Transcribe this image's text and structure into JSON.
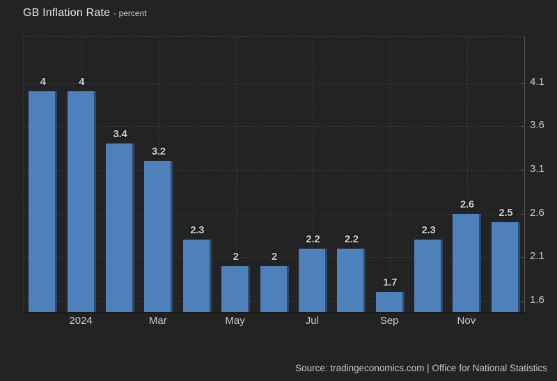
{
  "title": {
    "main": "GB Inflation Rate",
    "unit": "- percent"
  },
  "source": "Source: tradingeconomics.com | Office for National Statistics",
  "colors": {
    "background": "#232323",
    "bar": "#4e81bc",
    "bar_edge": "#2b4a6f",
    "grid": "#3d3d3d",
    "axis_line": "#57585a",
    "tick_text": "#c9c9c9",
    "value_label_text": "#cbcbcb",
    "title_text": "#e8e8e8",
    "source_text": "#c6c6c6"
  },
  "chart_data": {
    "type": "bar",
    "title": "GB Inflation Rate",
    "unit_label": "percent",
    "values": [
      4,
      4,
      3.4,
      3.2,
      2.3,
      2,
      2,
      2.2,
      2.2,
      1.7,
      2.3,
      2.6,
      2.5
    ],
    "bar_labels": [
      "4",
      "4",
      "3.4",
      "3.2",
      "2.3",
      "2",
      "2",
      "2.2",
      "2.2",
      "1.7",
      "2.3",
      "2.6",
      "2.5"
    ],
    "x_ticks": [
      {
        "index": 1,
        "label": "2024"
      },
      {
        "index": 3,
        "label": "Mar"
      },
      {
        "index": 5,
        "label": "May"
      },
      {
        "index": 7,
        "label": "Jul"
      },
      {
        "index": 9,
        "label": "Sep"
      },
      {
        "index": 11,
        "label": "Nov"
      }
    ],
    "y_ticks": [
      "4.1",
      "3.6",
      "3.1",
      "2.6",
      "2.1",
      "1.6"
    ],
    "y_axis_side": "right",
    "grid_style": "dotted",
    "legend": "none"
  }
}
